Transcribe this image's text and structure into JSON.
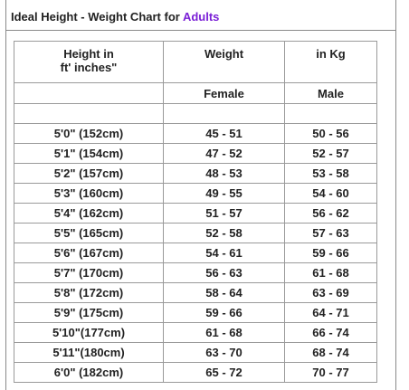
{
  "title": {
    "prefix": "Ideal Height - Weight Chart for ",
    "accent": "Adults",
    "accent_color": "#7a1fd6"
  },
  "headers": {
    "height_line1": "Height in",
    "height_line2": "ft' inches\"",
    "weight": "Weight",
    "in_kg": "in Kg",
    "female": "Female",
    "male": "Male"
  },
  "rows": [
    {
      "height": "5'0\" (152cm)",
      "female": "45 - 51",
      "male": "50 - 56"
    },
    {
      "height": "5'1\" (154cm)",
      "female": "47 - 52",
      "male": "52 - 57"
    },
    {
      "height": "5'2\" (157cm)",
      "female": "48 - 53",
      "male": "53 - 58"
    },
    {
      "height": "5'3\" (160cm)",
      "female": "49 - 55",
      "male": "54 - 60"
    },
    {
      "height": "5'4\" (162cm)",
      "female": "51 - 57",
      "male": "56 - 62"
    },
    {
      "height": "5'5\" (165cm)",
      "female": "52 - 58",
      "male": "57 - 63"
    },
    {
      "height": "5'6\" (167cm)",
      "female": "54 - 61",
      "male": "59 - 66"
    },
    {
      "height": "5'7\" (170cm)",
      "female": "56 - 63",
      "male": "61 - 68"
    },
    {
      "height": "5'8\" (172cm)",
      "female": "58 - 64",
      "male": "63 - 69"
    },
    {
      "height": "5'9\" (175cm)",
      "female": "59 - 66",
      "male": "64 - 71"
    },
    {
      "height": "5'10\"(177cm)",
      "female": "61 - 68",
      "male": "66 - 74"
    },
    {
      "height": "5'11\"(180cm)",
      "female": "63 - 70",
      "male": "68 - 74"
    },
    {
      "height": "6'0\" (182cm)",
      "female": "65 - 72",
      "male": "70 - 77"
    }
  ]
}
